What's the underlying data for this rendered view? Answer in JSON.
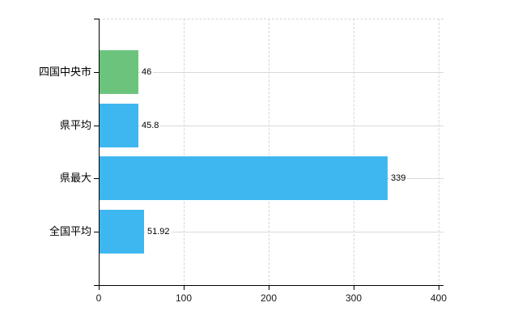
{
  "chart_data": {
    "type": "bar",
    "orientation": "horizontal",
    "title": "",
    "xlabel": "",
    "ylabel": "",
    "categories": [
      "四国中央市",
      "県平均",
      "県最大",
      "全国平均"
    ],
    "values": [
      46,
      45.8,
      339,
      51.92
    ],
    "value_labels": [
      "46",
      "45.8",
      "339",
      "51.92"
    ],
    "bar_colors": [
      "#6cc47c",
      "#3eb7f1",
      "#3eb7f1",
      "#3eb7f1"
    ],
    "x_ticks": [
      0,
      100,
      200,
      300,
      400
    ],
    "x_tick_labels": [
      "0",
      "100",
      "200",
      "300",
      "400"
    ],
    "xlim": [
      0,
      400
    ],
    "grid": "on",
    "legend": "none"
  },
  "colors": {
    "grid": "#d6d6d6",
    "axis": "#000000",
    "text": "#000000",
    "background": "#ffffff",
    "bar_green": "#6cc47c",
    "bar_blue": "#3eb7f1"
  }
}
